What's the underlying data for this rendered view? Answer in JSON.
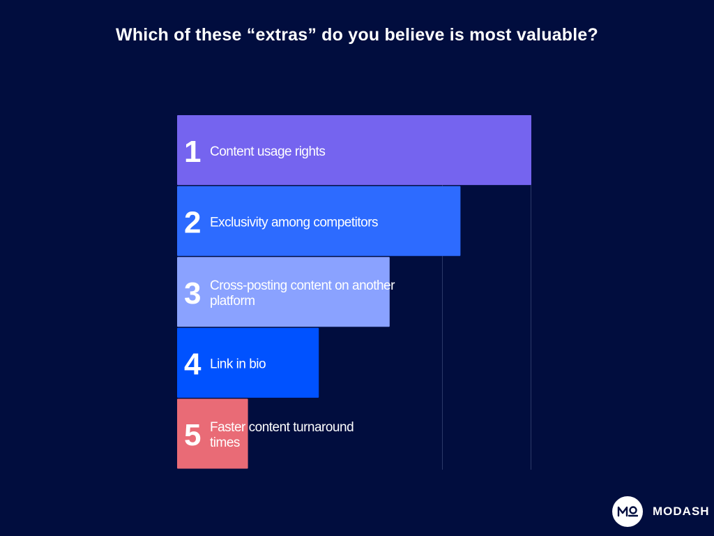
{
  "title": "Which of these “extras” do you believe is most valuable?",
  "chart_data": {
    "type": "bar",
    "orientation": "horizontal",
    "categories": [
      "Content usage rights",
      "Exclusivity among competitors",
      "Cross-posting content on another platform",
      "Link in bio",
      "Faster content turnaround times"
    ],
    "category_lines": [
      [
        "Content usage rights"
      ],
      [
        "Exclusivity among competitors"
      ],
      [
        "Cross-posting content on another",
        "platform"
      ],
      [
        "Link in bio"
      ],
      [
        "Faster content turnaround",
        "times"
      ]
    ],
    "ranks": [
      "1",
      "2",
      "3",
      "4",
      "5"
    ],
    "values": [
      5,
      4,
      3,
      2,
      1
    ],
    "xlim": [
      0,
      5
    ],
    "colors": [
      "#7564ef",
      "#2d6bff",
      "#8aa2ff",
      "#0052ff",
      "#e96b76"
    ],
    "grid": true,
    "legend": "none"
  },
  "brand": {
    "name": "MODASH",
    "icon": "modash-logo-icon"
  }
}
